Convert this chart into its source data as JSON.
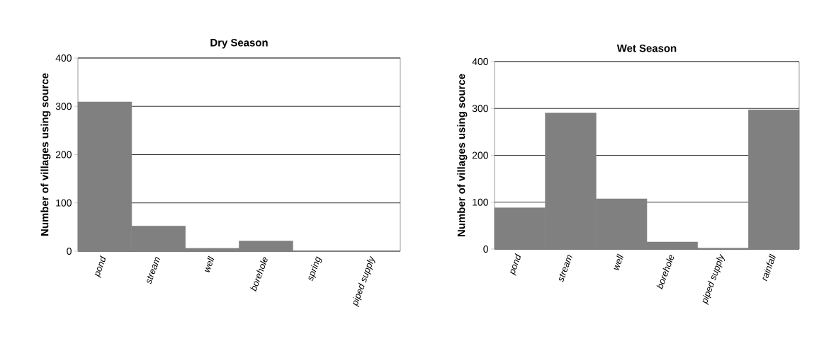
{
  "chart_data": [
    {
      "type": "bar",
      "title": "Dry Season",
      "ylabel": "Number of villages using source",
      "categories": [
        "pond",
        "stream",
        "well",
        "borehole",
        "spring",
        "piped supply"
      ],
      "values": [
        309,
        52,
        6,
        21,
        0,
        0
      ],
      "color": "#808080",
      "ylim": [
        0,
        400
      ],
      "yticks": [
        0,
        100,
        200,
        300,
        400
      ],
      "grid": "y"
    },
    {
      "type": "bar",
      "title": "Wet Season",
      "ylabel": "Number of villages using source",
      "categories": [
        "pond",
        "stream",
        "well",
        "borehole",
        "piped supply",
        "rainfall"
      ],
      "values": [
        88,
        290,
        107,
        15,
        2,
        297
      ],
      "color": "#808080",
      "ylim": [
        0,
        400
      ],
      "yticks": [
        0,
        100,
        200,
        300,
        400
      ],
      "grid": "y"
    }
  ]
}
